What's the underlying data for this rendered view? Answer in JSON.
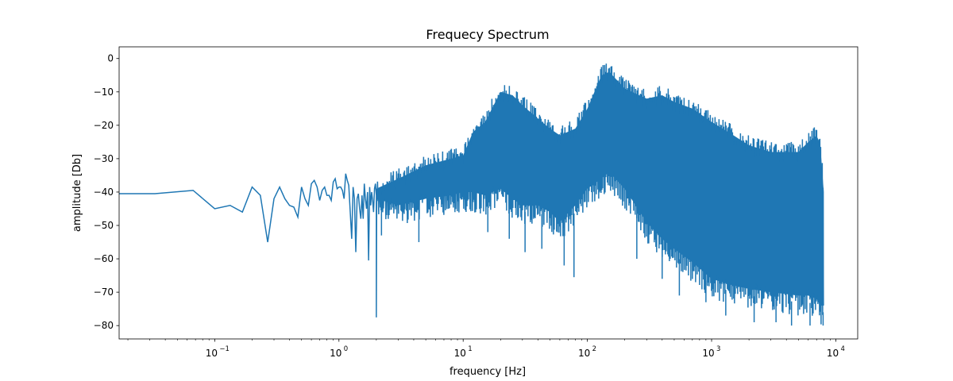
{
  "chart_data": {
    "type": "line",
    "title": "Frequecy Spectrum",
    "xlabel": "frequency [Hz]",
    "ylabel": "amplitude [Db]",
    "xscale": "log",
    "xlim": [
      0.017,
      15000
    ],
    "ylim": [
      -84,
      3.5
    ],
    "grid": false,
    "legend": "none",
    "color": "#1f77b4",
    "x_ticks": [
      {
        "base": "10",
        "exp": "−1",
        "value": 0.1
      },
      {
        "base": "10",
        "exp": "0",
        "value": 1
      },
      {
        "base": "10",
        "exp": "1",
        "value": 10
      },
      {
        "base": "10",
        "exp": "2",
        "value": 100
      },
      {
        "base": "10",
        "exp": "3",
        "value": 1000
      },
      {
        "base": "10",
        "exp": "4",
        "value": 10000
      }
    ],
    "y_ticks": [
      {
        "label": "0",
        "value": 0
      },
      {
        "label": "−10",
        "value": -10
      },
      {
        "label": "−20",
        "value": -20
      },
      {
        "label": "−30",
        "value": -30
      },
      {
        "label": "−40",
        "value": -40
      },
      {
        "label": "−50",
        "value": -50
      },
      {
        "label": "−60",
        "value": -60
      },
      {
        "label": "−70",
        "value": -70
      },
      {
        "label": "−80",
        "value": -80
      }
    ],
    "series": [
      {
        "x": [
          0.017,
          0.033,
          0.067,
          0.1,
          0.133,
          0.167,
          0.2,
          0.233,
          0.267,
          0.3,
          0.333,
          0.367,
          0.4,
          0.433,
          0.467,
          0.5,
          0.533,
          0.567,
          0.6,
          0.633,
          0.667,
          0.7,
          0.733,
          0.767,
          0.8,
          0.833,
          0.867,
          0.9,
          0.933,
          0.967,
          1.0,
          1.033,
          1.067,
          1.1,
          1.133,
          1.167,
          1.2,
          1.233,
          1.267,
          1.3,
          1.333,
          1.367,
          1.4,
          1.433,
          1.467,
          1.5,
          1.533,
          1.567,
          1.6,
          1.633,
          1.667,
          1.7,
          1.733,
          1.767,
          1.8,
          1.833,
          1.867,
          1.9,
          1.933,
          1.967,
          2.0
        ],
        "y": [
          -40.5,
          -40.5,
          -39.5,
          -45.0,
          -44.0,
          -46.0,
          -38.5,
          -41.0,
          -55.0,
          -42.0,
          -38.5,
          -42.0,
          -44.0,
          -44.5,
          -47.5,
          -38.5,
          -42.0,
          -44.0,
          -37.5,
          -36.5,
          -38.5,
          -42.5,
          -39.5,
          -38.5,
          -41.0,
          -41.0,
          -42.5,
          -37.0,
          -36.0,
          -39.0,
          -38.5,
          -38.5,
          -39.5,
          -42.0,
          -34.5,
          -36.5,
          -38.0,
          -46.0,
          -54.0,
          -38.5,
          -42.0,
          -58.0,
          -42.0,
          -40.5,
          -45.0,
          -48.0,
          -41.0,
          -48.0,
          -37.5,
          -42.0,
          -45.0,
          -40.0,
          -60.5,
          -38.5,
          -44.0,
          -40.0,
          -42.5,
          -46.0,
          -39.0,
          -37.5,
          -41.0
        ]
      }
    ],
    "envelope": {
      "description": "dense oscillation band from about 2 Hz to 8000 Hz",
      "x": [
        2,
        3,
        5,
        8,
        10,
        12,
        15,
        20,
        25,
        30,
        40,
        50,
        60,
        80,
        100,
        130,
        150,
        200,
        300,
        400,
        500,
        700,
        1000,
        1500,
        2000,
        3000,
        5000,
        6000,
        7000,
        7500,
        8000
      ],
      "upper": [
        -36,
        -33,
        -29,
        -27,
        -26,
        -19,
        -16,
        -7,
        -8,
        -11,
        -15,
        -18,
        -20,
        -18,
        -12,
        -2,
        -1,
        -6,
        -9,
        -8,
        -10,
        -12,
        -16,
        -20,
        -23,
        -25,
        -25,
        -22,
        -20,
        -23,
        -37
      ],
      "lower": [
        -48,
        -50,
        -48,
        -47,
        -46,
        -46,
        -47,
        -45,
        -48,
        -50,
        -50,
        -52,
        -55,
        -50,
        -45,
        -42,
        -40,
        -45,
        -55,
        -60,
        -63,
        -67,
        -72,
        -74,
        -75,
        -76,
        -77,
        -77,
        -78,
        -80,
        -80
      ],
      "spikes": [
        {
          "x": 2.2,
          "y": -53
        },
        {
          "x": 4.4,
          "y": -55
        },
        {
          "x": 15.8,
          "y": -52
        },
        {
          "x": 23.5,
          "y": -54
        },
        {
          "x": 31.5,
          "y": -58
        },
        {
          "x": 43,
          "y": -57
        },
        {
          "x": 65,
          "y": -62
        },
        {
          "x": 78,
          "y": -65.5
        },
        {
          "x": 250,
          "y": -60
        },
        {
          "x": 400,
          "y": -66
        },
        {
          "x": 550,
          "y": -71
        },
        {
          "x": 900,
          "y": -73
        },
        {
          "x": 1300,
          "y": -77
        },
        {
          "x": 2200,
          "y": -79
        },
        {
          "x": 3300,
          "y": -79
        },
        {
          "x": 4400,
          "y": -80
        },
        {
          "x": 6200,
          "y": -80
        },
        {
          "x": 7900,
          "y": -80
        }
      ]
    }
  }
}
